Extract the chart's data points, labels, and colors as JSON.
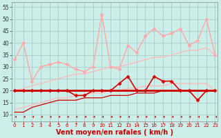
{
  "background_color": "#cceee8",
  "grid_color": "#aacccc",
  "xlabel": "Vent moyen/en rafales ( km/h )",
  "xlabel_color": "#cc0000",
  "xlabel_fontsize": 7,
  "ytick_labels": [
    "10",
    "15",
    "20",
    "25",
    "30",
    "35",
    "40",
    "45",
    "50",
    "55"
  ],
  "yticks": [
    10,
    15,
    20,
    25,
    30,
    35,
    40,
    45,
    50,
    55
  ],
  "xticks": [
    0,
    1,
    2,
    3,
    4,
    5,
    6,
    7,
    8,
    9,
    10,
    11,
    12,
    13,
    14,
    15,
    16,
    17,
    18,
    19,
    20,
    21,
    22,
    23
  ],
  "ylim": [
    7,
    57
  ],
  "xlim": [
    -0.3,
    23.3
  ],
  "series": [
    {
      "color": "#ffaaaa",
      "lw": 0.8,
      "marker": "+",
      "markersize": 3,
      "zorder": 3,
      "data": [
        33,
        40,
        24,
        30,
        31,
        32,
        31,
        29,
        28,
        30,
        52,
        30,
        29,
        39,
        36,
        43,
        46,
        43,
        44,
        46,
        39,
        41,
        50,
        35
      ]
    },
    {
      "color": "#ffaaaa",
      "lw": 0.9,
      "marker": "D",
      "markersize": 2.5,
      "zorder": 3,
      "data": [
        33,
        40,
        24,
        30,
        31,
        32,
        31,
        29,
        28,
        30,
        52,
        30,
        29,
        39,
        36,
        43,
        46,
        43,
        44,
        46,
        39,
        41,
        50,
        35
      ]
    },
    {
      "color": "#ffbbbb",
      "lw": 1.0,
      "marker": null,
      "markersize": 0,
      "zorder": 2,
      "data": [
        20,
        21,
        22,
        23,
        24,
        25,
        26,
        27,
        27,
        28,
        29,
        30,
        30,
        31,
        32,
        33,
        34,
        34,
        35,
        36,
        37,
        37,
        38,
        35
      ]
    },
    {
      "color": "#ffbbbb",
      "lw": 1.0,
      "marker": null,
      "markersize": 0,
      "zorder": 2,
      "data": [
        12,
        13,
        14,
        15,
        16,
        17,
        17,
        18,
        18,
        19,
        19,
        20,
        20,
        21,
        21,
        22,
        22,
        22,
        23,
        23,
        23,
        23,
        23,
        20
      ]
    },
    {
      "color": "#dd0000",
      "lw": 1.2,
      "marker": "D",
      "markersize": 2.5,
      "zorder": 4,
      "data": [
        20,
        20,
        20,
        20,
        20,
        20,
        20,
        18,
        18,
        20,
        20,
        20,
        23,
        26,
        20,
        20,
        26,
        24,
        24,
        20,
        20,
        16,
        20,
        20
      ]
    },
    {
      "color": "#cc0000",
      "lw": 2.0,
      "marker": null,
      "markersize": 0,
      "zorder": 4,
      "data": [
        20,
        20,
        20,
        20,
        20,
        20,
        20,
        20,
        20,
        20,
        20,
        20,
        20,
        20,
        20,
        20,
        20,
        20,
        20,
        20,
        20,
        20,
        20,
        20
      ]
    },
    {
      "color": "#cc0000",
      "lw": 0.9,
      "marker": null,
      "markersize": 0,
      "zorder": 3,
      "data": [
        11,
        11,
        13,
        14,
        15,
        16,
        16,
        16,
        17,
        17,
        17,
        18,
        18,
        18,
        19,
        19,
        19,
        20,
        20,
        20,
        20,
        20,
        20,
        20
      ]
    }
  ]
}
